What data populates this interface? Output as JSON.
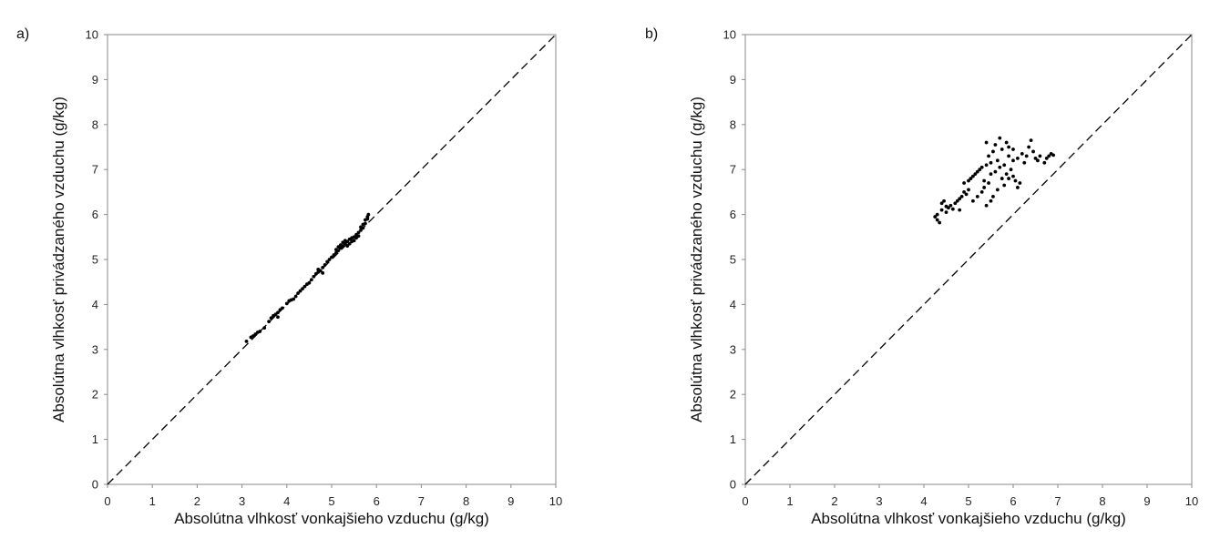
{
  "chart_data": [
    {
      "type": "scatter",
      "panel_label": "a)",
      "xlabel": "Absolútna vlhkosť vonkajšieho vzduchu (g/kg)",
      "ylabel": "Absolútna vlhkosť privádzaného vzduchu (g/kg)",
      "xlim": [
        0,
        10
      ],
      "ylim": [
        0,
        10
      ],
      "xticks": [
        0,
        1,
        2,
        3,
        4,
        5,
        6,
        7,
        8,
        9,
        10
      ],
      "yticks": [
        0,
        1,
        2,
        3,
        4,
        5,
        6,
        7,
        8,
        9,
        10
      ],
      "grid": false,
      "reference_line": {
        "style": "dashed",
        "from": [
          0,
          0
        ],
        "to": [
          10,
          10
        ]
      },
      "series": [
        {
          "color": "#000000",
          "points": [
            [
              3.1,
              3.18
            ],
            [
              3.2,
              3.27
            ],
            [
              3.25,
              3.3
            ],
            [
              3.3,
              3.34
            ],
            [
              3.35,
              3.38
            ],
            [
              3.4,
              3.4
            ],
            [
              3.5,
              3.48
            ],
            [
              3.6,
              3.62
            ],
            [
              3.65,
              3.7
            ],
            [
              3.7,
              3.75
            ],
            [
              3.75,
              3.78
            ],
            [
              3.8,
              3.82
            ],
            [
              3.8,
              3.72
            ],
            [
              3.85,
              3.88
            ],
            [
              3.9,
              3.92
            ],
            [
              4.0,
              4.02
            ],
            [
              4.05,
              4.08
            ],
            [
              4.1,
              4.1
            ],
            [
              4.15,
              4.12
            ],
            [
              4.2,
              4.18
            ],
            [
              4.25,
              4.25
            ],
            [
              4.3,
              4.3
            ],
            [
              4.35,
              4.35
            ],
            [
              4.4,
              4.4
            ],
            [
              4.45,
              4.45
            ],
            [
              4.5,
              4.48
            ],
            [
              4.55,
              4.55
            ],
            [
              4.6,
              4.62
            ],
            [
              4.65,
              4.68
            ],
            [
              4.7,
              4.72
            ],
            [
              4.7,
              4.78
            ],
            [
              4.75,
              4.75
            ],
            [
              4.8,
              4.82
            ],
            [
              4.8,
              4.7
            ],
            [
              4.85,
              4.88
            ],
            [
              4.9,
              4.95
            ],
            [
              4.95,
              5.0
            ],
            [
              5.0,
              5.05
            ],
            [
              5.05,
              5.1
            ],
            [
              5.1,
              5.15
            ],
            [
              5.1,
              5.22
            ],
            [
              5.15,
              5.2
            ],
            [
              5.15,
              5.28
            ],
            [
              5.2,
              5.25
            ],
            [
              5.2,
              5.32
            ],
            [
              5.25,
              5.3
            ],
            [
              5.25,
              5.38
            ],
            [
              5.3,
              5.35
            ],
            [
              5.3,
              5.42
            ],
            [
              5.35,
              5.4
            ],
            [
              5.35,
              5.3
            ],
            [
              5.4,
              5.45
            ],
            [
              5.4,
              5.35
            ],
            [
              5.45,
              5.48
            ],
            [
              5.45,
              5.4
            ],
            [
              5.5,
              5.5
            ],
            [
              5.5,
              5.42
            ],
            [
              5.55,
              5.48
            ],
            [
              5.55,
              5.55
            ],
            [
              5.6,
              5.52
            ],
            [
              5.6,
              5.6
            ],
            [
              5.65,
              5.65
            ],
            [
              5.65,
              5.72
            ],
            [
              5.7,
              5.7
            ],
            [
              5.7,
              5.78
            ],
            [
              5.75,
              5.8
            ],
            [
              5.75,
              5.88
            ],
            [
              5.8,
              5.9
            ],
            [
              5.8,
              5.95
            ],
            [
              5.82,
              6.0
            ]
          ]
        }
      ]
    },
    {
      "type": "scatter",
      "panel_label": "b)",
      "xlabel": "Absolútna vlhkosť vonkajšieho vzduchu (g/kg)",
      "ylabel": "Absolútna vlhkosť privádzaného vzduchu (g/kg)",
      "xlim": [
        0,
        10
      ],
      "ylim": [
        0,
        10
      ],
      "xticks": [
        0,
        1,
        2,
        3,
        4,
        5,
        6,
        7,
        8,
        9,
        10
      ],
      "yticks": [
        0,
        1,
        2,
        3,
        4,
        5,
        6,
        7,
        8,
        9,
        10
      ],
      "grid": false,
      "reference_line": {
        "style": "dashed",
        "from": [
          0,
          0
        ],
        "to": [
          10,
          10
        ]
      },
      "series": [
        {
          "color": "#000000",
          "points": [
            [
              4.25,
              5.95
            ],
            [
              4.3,
              6.0
            ],
            [
              4.3,
              5.88
            ],
            [
              4.35,
              5.82
            ],
            [
              4.4,
              6.1
            ],
            [
              4.4,
              6.25
            ],
            [
              4.45,
              6.3
            ],
            [
              4.5,
              6.18
            ],
            [
              4.5,
              6.05
            ],
            [
              4.55,
              6.15
            ],
            [
              4.6,
              6.2
            ],
            [
              4.65,
              6.12
            ],
            [
              4.7,
              6.25
            ],
            [
              4.75,
              6.3
            ],
            [
              4.8,
              6.35
            ],
            [
              4.8,
              6.1
            ],
            [
              4.85,
              6.4
            ],
            [
              4.9,
              6.5
            ],
            [
              4.9,
              6.7
            ],
            [
              4.95,
              6.45
            ],
            [
              5.0,
              6.75
            ],
            [
              5.0,
              6.55
            ],
            [
              5.05,
              6.8
            ],
            [
              5.1,
              6.85
            ],
            [
              5.1,
              6.3
            ],
            [
              5.15,
              6.9
            ],
            [
              5.2,
              6.95
            ],
            [
              5.2,
              6.4
            ],
            [
              5.25,
              7.0
            ],
            [
              5.3,
              7.05
            ],
            [
              5.3,
              6.5
            ],
            [
              5.35,
              6.6
            ],
            [
              5.35,
              6.75
            ],
            [
              5.4,
              7.1
            ],
            [
              5.4,
              6.2
            ],
            [
              5.4,
              7.6
            ],
            [
              5.45,
              6.7
            ],
            [
              5.45,
              7.3
            ],
            [
              5.5,
              6.3
            ],
            [
              5.5,
              6.9
            ],
            [
              5.5,
              7.15
            ],
            [
              5.55,
              6.4
            ],
            [
              5.55,
              7.4
            ],
            [
              5.6,
              6.95
            ],
            [
              5.6,
              7.55
            ],
            [
              5.65,
              6.55
            ],
            [
              5.65,
              7.2
            ],
            [
              5.7,
              7.05
            ],
            [
              5.7,
              7.7
            ],
            [
              5.75,
              6.8
            ],
            [
              5.75,
              7.45
            ],
            [
              5.8,
              7.1
            ],
            [
              5.8,
              6.65
            ],
            [
              5.85,
              7.6
            ],
            [
              5.85,
              6.9
            ],
            [
              5.9,
              7.3
            ],
            [
              5.9,
              6.8
            ],
            [
              5.95,
              7.0
            ],
            [
              6.0,
              6.85
            ],
            [
              6.0,
              7.2
            ],
            [
              6.05,
              6.75
            ],
            [
              6.1,
              7.25
            ],
            [
              6.1,
              6.6
            ],
            [
              6.15,
              6.7
            ],
            [
              6.2,
              7.35
            ],
            [
              6.25,
              7.15
            ],
            [
              6.3,
              7.3
            ],
            [
              6.35,
              7.5
            ],
            [
              6.4,
              7.65
            ],
            [
              6.45,
              7.4
            ],
            [
              6.5,
              7.25
            ],
            [
              6.55,
              7.2
            ],
            [
              6.6,
              7.3
            ],
            [
              6.7,
              7.15
            ],
            [
              6.75,
              7.25
            ],
            [
              6.8,
              7.3
            ],
            [
              6.85,
              7.35
            ],
            [
              6.9,
              7.32
            ],
            [
              6.0,
              7.45
            ],
            [
              5.9,
              7.5
            ]
          ]
        }
      ]
    }
  ]
}
